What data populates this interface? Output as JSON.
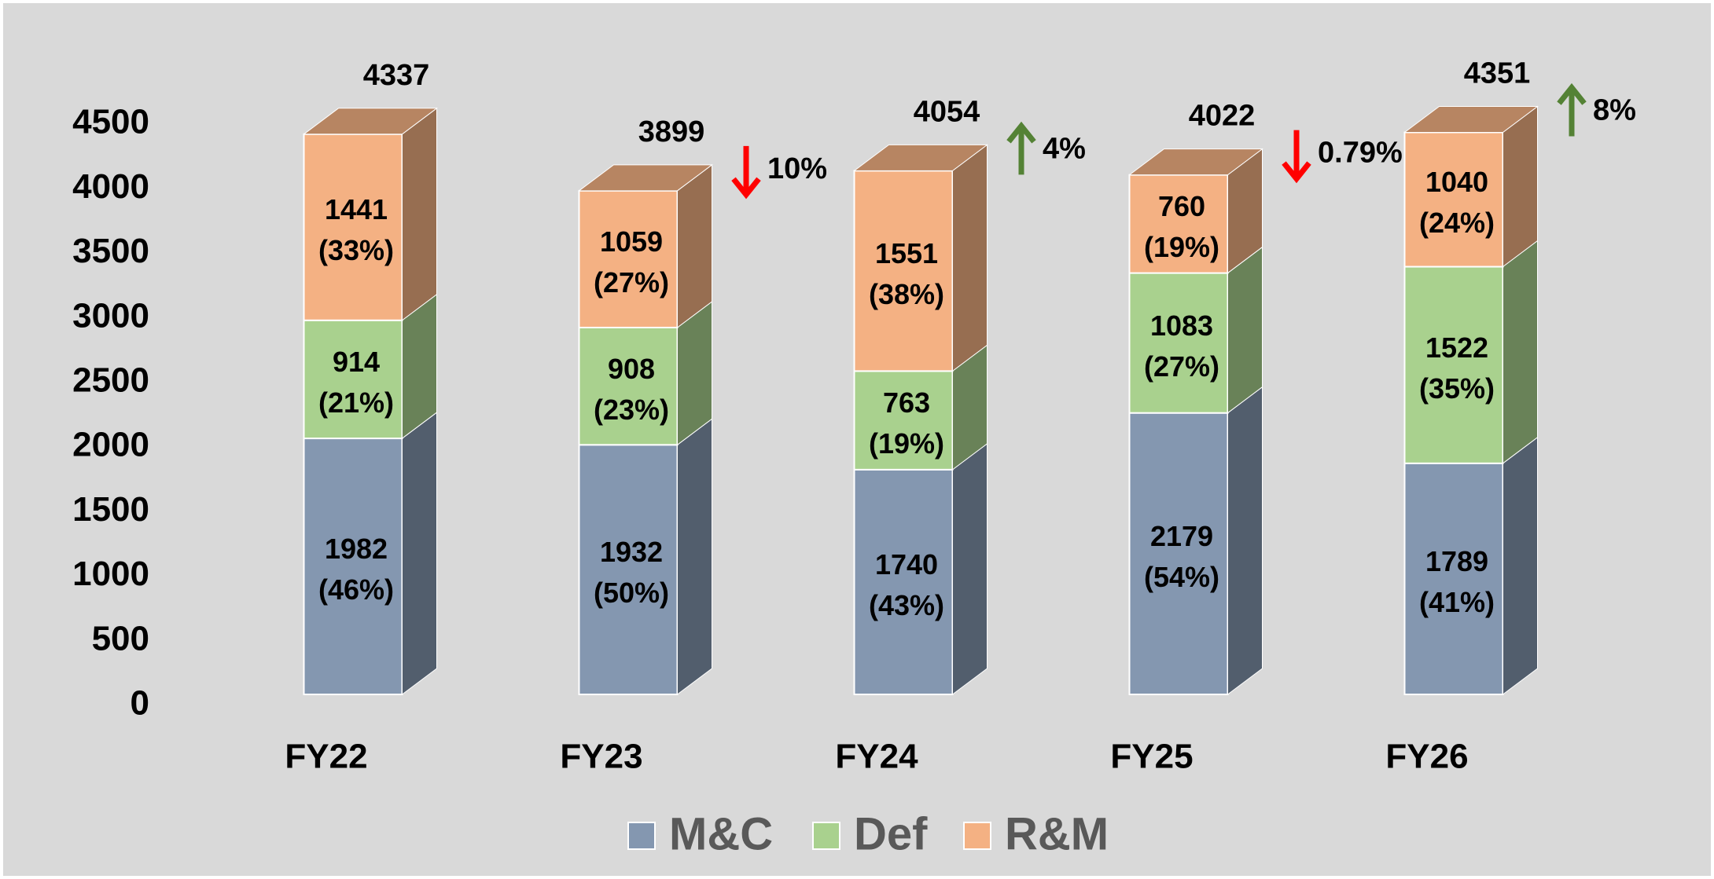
{
  "chart_data": {
    "type": "bar3d_stacked",
    "categories": [
      "FY22",
      "FY23",
      "FY24",
      "FY25",
      "FY26"
    ],
    "series": [
      {
        "name": "M&C",
        "color": "#8497b0",
        "values": [
          1982,
          1932,
          1740,
          2179,
          1789
        ],
        "value_labels": [
          "1982 (46%)",
          "1932 (50%)",
          "1740 (43%)",
          "2179 (54%)",
          "1789 (41%)"
        ]
      },
      {
        "name": "Def",
        "color": "#a9d18e",
        "values": [
          914,
          908,
          763,
          1083,
          1522
        ],
        "value_labels": [
          "914 (21%)",
          "908 (23%)",
          "763 (19%)",
          "1083 (27%)",
          "1522 (35%)"
        ]
      },
      {
        "name": "R&M",
        "color": "#f4b183",
        "values": [
          1441,
          1059,
          1551,
          760,
          1040
        ],
        "value_labels": [
          "1441 (33%)",
          "1059 (27%)",
          "1551 (38%)",
          "760 (19%)",
          "1040 (24%)"
        ]
      }
    ],
    "totals": [
      4337,
      3899,
      4054,
      4022,
      4351
    ],
    "changes": [
      null,
      {
        "label": "10%",
        "direction": "down",
        "color": "#ff0000"
      },
      {
        "label": "4%",
        "direction": "up",
        "color": "#548235"
      },
      {
        "label": "0.79%",
        "direction": "down",
        "color": "#ff0000"
      },
      {
        "label": "8%",
        "direction": "up",
        "color": "#548235"
      }
    ],
    "ylim": [
      0,
      4500
    ],
    "yticks": [
      0,
      500,
      1000,
      1500,
      2000,
      2500,
      3000,
      3500,
      4000,
      4500
    ],
    "grid": false,
    "legend": "bottom"
  }
}
